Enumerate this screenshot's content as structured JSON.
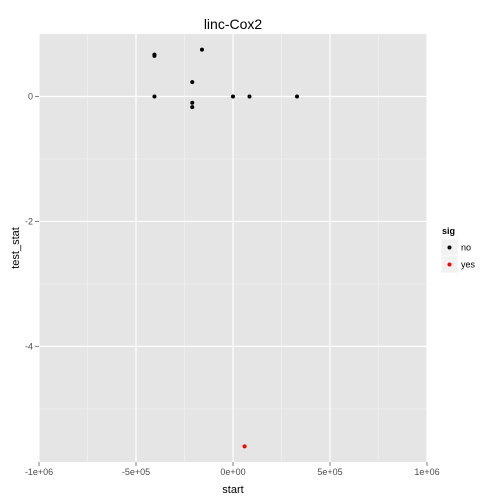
{
  "chart_data": {
    "type": "scatter",
    "title": "linc-Cox2",
    "xlabel": "start",
    "ylabel": "test_stat",
    "xlim": [
      -1000000,
      1000000
    ],
    "ylim": [
      -5.85,
      1.0
    ],
    "x_ticks": [
      -1000000,
      -500000,
      0,
      500000,
      1000000
    ],
    "x_tick_labels": [
      "-1e+06",
      "-5e+05",
      "0e+00",
      "5e+05",
      "1e+06"
    ],
    "y_ticks": [
      -4,
      -2,
      0
    ],
    "y_tick_labels": [
      "-4",
      "-2",
      "0"
    ],
    "grid": true,
    "legend": {
      "title": "sig",
      "position": "right",
      "entries": [
        {
          "label": "no",
          "color": "#000000"
        },
        {
          "label": "yes",
          "color": "#ff0000"
        }
      ]
    },
    "series": [
      {
        "name": "no",
        "color": "#000000",
        "points": [
          {
            "x": -405000,
            "y": 0.67
          },
          {
            "x": -405000,
            "y": 0.65
          },
          {
            "x": -160000,
            "y": 0.75
          },
          {
            "x": -405000,
            "y": 0.0
          },
          {
            "x": -210000,
            "y": 0.23
          },
          {
            "x": -210000,
            "y": -0.1
          },
          {
            "x": -210000,
            "y": -0.17
          },
          {
            "x": 0,
            "y": 0.0
          },
          {
            "x": 85000,
            "y": 0.0
          },
          {
            "x": 330000,
            "y": 0.0
          }
        ]
      },
      {
        "name": "yes",
        "color": "#ff0000",
        "points": [
          {
            "x": 60000,
            "y": -5.6
          }
        ]
      }
    ]
  }
}
